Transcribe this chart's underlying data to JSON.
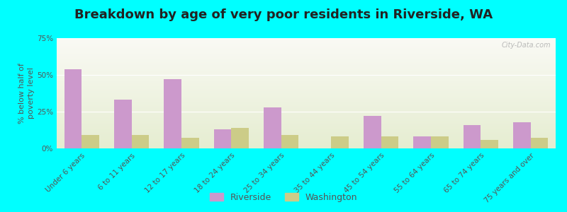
{
  "title": "Breakdown by age of very poor residents in Riverside, WA",
  "ylabel": "% below half of\npoverty level",
  "categories": [
    "Under 6 years",
    "6 to 11 years",
    "12 to 17 years",
    "18 to 24 years",
    "25 to 34 years",
    "35 to 44 years",
    "45 to 54 years",
    "55 to 64 years",
    "65 to 74 years",
    "75 years and over"
  ],
  "riverside_values": [
    54,
    33,
    47,
    13,
    28,
    0,
    22,
    8,
    16,
    18
  ],
  "washington_values": [
    9,
    9,
    7,
    14,
    9,
    8,
    8,
    8,
    6,
    7
  ],
  "riverside_color": "#cc99cc",
  "washington_color": "#cccc88",
  "ylim": [
    0,
    75
  ],
  "yticks": [
    0,
    25,
    50,
    75
  ],
  "ytick_labels": [
    "0%",
    "25%",
    "50%",
    "75%"
  ],
  "figure_bg": "#00ffff",
  "bar_width": 0.35,
  "legend_labels": [
    "Riverside",
    "Washington"
  ],
  "watermark": "City-Data.com",
  "title_fontsize": 13,
  "axis_label_fontsize": 8,
  "tick_fontsize": 7.5
}
